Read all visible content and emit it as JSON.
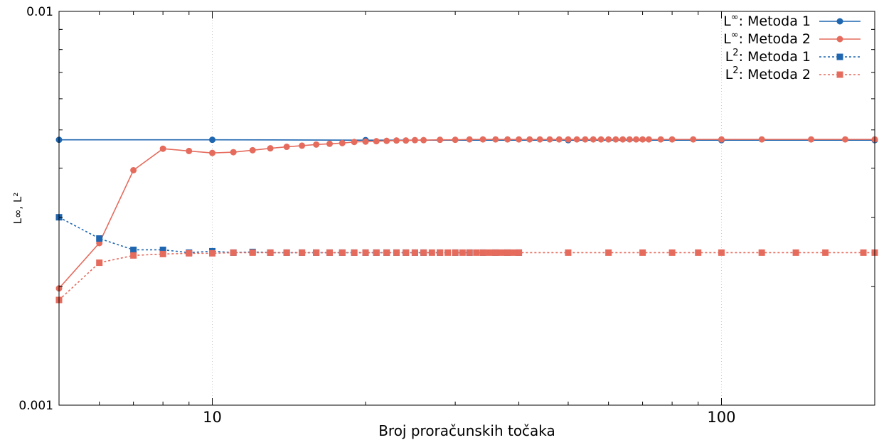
{
  "chart_data": {
    "type": "line",
    "xlabel": "Broj proračunskih točaka",
    "ylabel": "L∞, L²",
    "xscale": "log",
    "yscale": "log",
    "xlim": [
      5,
      200
    ],
    "ylim": [
      0.001,
      0.01
    ],
    "x_tick_labels": [
      {
        "value": 10,
        "label": "10"
      },
      {
        "value": 100,
        "label": "100"
      }
    ],
    "y_tick_labels": [
      {
        "value": 0.001,
        "label": "0.001"
      },
      {
        "value": 0.01,
        "label": "0.01"
      }
    ],
    "grid": "vertical dotted lines at decades",
    "legend_position": "top-right",
    "series": [
      {
        "name": "L∞: Metoda 1",
        "label_base": "L",
        "label_sup": "∞",
        "label_rest": ": Metoda 1",
        "color": "#1f66b0",
        "line_style": "solid",
        "marker": "circle",
        "x": [
          5,
          10,
          20,
          50,
          100,
          200
        ],
        "y": [
          0.00472,
          0.00472,
          0.00471,
          0.00471,
          0.00471,
          0.00471
        ]
      },
      {
        "name": "L∞: Metoda 2",
        "label_base": "L",
        "label_sup": "∞",
        "label_rest": ": Metoda 2",
        "color": "#e56b5d",
        "line_style": "solid",
        "marker": "circle",
        "x": [
          5,
          6,
          7,
          8,
          9,
          10,
          11,
          12,
          13,
          14,
          15,
          16,
          17,
          18,
          19,
          20,
          21,
          22,
          23,
          24,
          25,
          26,
          28,
          30,
          32,
          34,
          36,
          38,
          40,
          42,
          44,
          46,
          48,
          50,
          52,
          54,
          56,
          58,
          60,
          62,
          64,
          66,
          68,
          70,
          72,
          76,
          80,
          88,
          100,
          120,
          150,
          175,
          200
        ],
        "y": [
          0.00198,
          0.00258,
          0.00395,
          0.00448,
          0.00442,
          0.00437,
          0.00439,
          0.00444,
          0.00449,
          0.00453,
          0.00456,
          0.00459,
          0.00461,
          0.00463,
          0.00466,
          0.00467,
          0.00468,
          0.00469,
          0.0047,
          0.0047,
          0.00471,
          0.00471,
          0.00472,
          0.00472,
          0.00473,
          0.00473,
          0.00473,
          0.00473,
          0.00473,
          0.00473,
          0.00473,
          0.00473,
          0.00473,
          0.00473,
          0.00473,
          0.00473,
          0.00473,
          0.00473,
          0.00473,
          0.00473,
          0.00473,
          0.00473,
          0.00473,
          0.00473,
          0.00473,
          0.00473,
          0.00473,
          0.00473,
          0.00473,
          0.00473,
          0.00473,
          0.00473,
          0.00473
        ]
      },
      {
        "name": "L²: Metoda 1",
        "label_base": "L",
        "label_sup": "2",
        "label_rest": ": Metoda 1",
        "color": "#1f66b0",
        "line_style": "dotted",
        "marker": "square",
        "x": [
          5,
          6,
          7,
          8,
          9,
          10,
          11,
          12,
          13,
          14,
          15,
          16,
          17,
          18,
          19,
          20,
          21,
          22,
          23,
          24,
          25,
          26,
          28,
          30,
          32,
          34,
          36,
          38,
          40
        ],
        "y": [
          0.003,
          0.00265,
          0.00248,
          0.00248,
          0.00244,
          0.00246,
          0.00244,
          0.00245,
          0.00244,
          0.00244,
          0.00244,
          0.00244,
          0.00244,
          0.00244,
          0.00244,
          0.00244,
          0.00244,
          0.00244,
          0.00244,
          0.00244,
          0.00244,
          0.00244,
          0.00244,
          0.00244,
          0.00244,
          0.00244,
          0.00244,
          0.00244,
          0.00244
        ]
      },
      {
        "name": "L²: Metoda 2",
        "label_base": "L",
        "label_sup": "2",
        "label_rest": ": Metoda 2",
        "color": "#e56b5d",
        "line_style": "dotted",
        "marker": "square",
        "x": [
          5,
          6,
          7,
          8,
          9,
          10,
          11,
          12,
          13,
          14,
          15,
          16,
          17,
          18,
          19,
          20,
          21,
          22,
          23,
          24,
          25,
          26,
          27,
          28,
          29,
          30,
          31,
          32,
          33,
          34,
          35,
          36,
          37,
          38,
          39,
          40,
          50,
          60,
          70,
          80,
          90,
          100,
          120,
          140,
          160,
          190,
          200
        ],
        "y": [
          0.00185,
          0.0023,
          0.0024,
          0.00242,
          0.00243,
          0.00243,
          0.00244,
          0.00244,
          0.00244,
          0.00244,
          0.00244,
          0.00244,
          0.00244,
          0.00244,
          0.00244,
          0.00244,
          0.00244,
          0.00244,
          0.00244,
          0.00244,
          0.00244,
          0.00244,
          0.00244,
          0.00244,
          0.00244,
          0.00244,
          0.00244,
          0.00244,
          0.00244,
          0.00244,
          0.00244,
          0.00244,
          0.00244,
          0.00244,
          0.00244,
          0.00244,
          0.00244,
          0.00244,
          0.00244,
          0.00244,
          0.00244,
          0.00244,
          0.00244,
          0.00244,
          0.00244,
          0.00244,
          0.00244
        ]
      }
    ]
  }
}
